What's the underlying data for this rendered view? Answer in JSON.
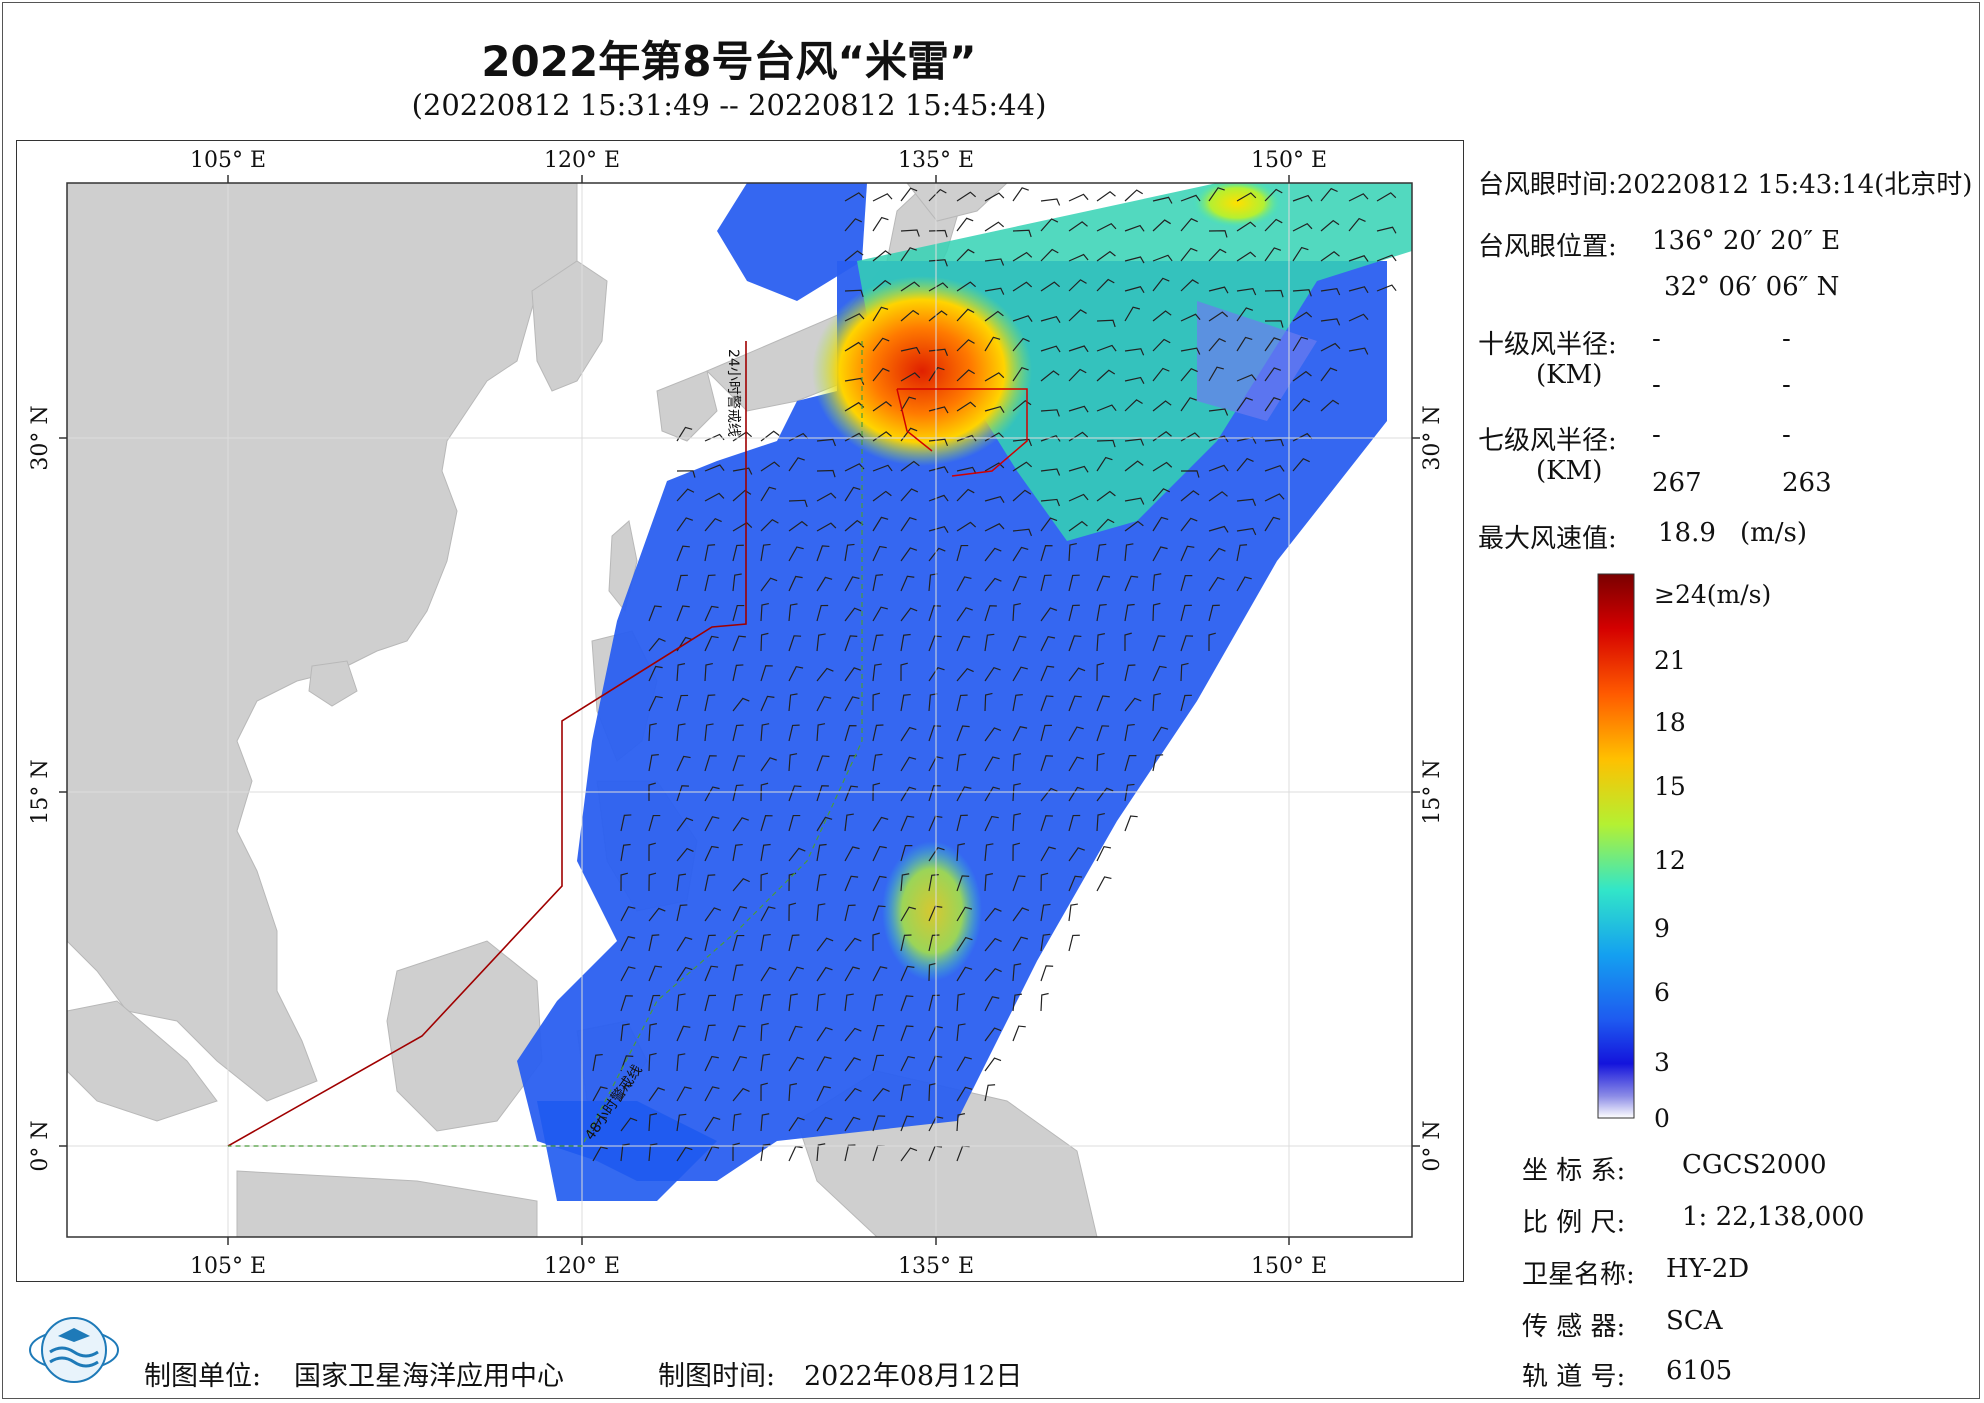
{
  "header": {
    "title": "2022年第8号台风“米雷”",
    "subtitle": "(20220812 15:31:49 -- 20220812 15:45:44)"
  },
  "map": {
    "lon_ticks_top": [
      "105° E",
      "120° E",
      "135° E",
      "150° E"
    ],
    "lon_ticks_bottom": [
      "105° E",
      "120° E",
      "135° E",
      "150° E"
    ],
    "lat_ticks": [
      "30° N",
      "15° N",
      "0° N"
    ],
    "warning_line_24h": "24小时警戒线",
    "warning_line_48h": "48小时警戒线",
    "colors": {
      "land": "#cfcfcf",
      "sea": "#ffffff",
      "grid": "#dcdcdc",
      "warning_24h": "#a00000",
      "warning_48h": "#4a9a3a"
    }
  },
  "info": {
    "eye_time_label": "台风眼时间:",
    "eye_time_value": "20220812 15:43:14(北京时)",
    "eye_position_label": "台风眼位置:",
    "eye_lon": "136° 20′ 20″ E",
    "eye_lat": "32° 06′ 06″ N",
    "r10_label": "十级风半径:",
    "r10_unit": "(KM)",
    "r10_values": [
      "-",
      "-",
      "-",
      "-"
    ],
    "r7_label": "七级风半径:",
    "r7_unit": "(KM)",
    "r7_values": [
      "-",
      "-",
      "267",
      "263"
    ],
    "max_wind_label": "最大风速值:",
    "max_wind_value": "18.9",
    "max_wind_unit": "(m/s)"
  },
  "colorbar": {
    "labels": [
      "≥24(m/s)",
      "21",
      "18",
      "15",
      "12",
      "9",
      "6",
      "3",
      "0"
    ],
    "colors": [
      "#7a0000",
      "#d40000",
      "#ff5a00",
      "#ffc000",
      "#b4f032",
      "#32e6c8",
      "#14a0f0",
      "#1e5af0",
      "#1414dc",
      "#8c8ce6",
      "#ffffff"
    ]
  },
  "meta": {
    "crs_label": "坐 标 系:",
    "crs_value": "CGCS2000",
    "scale_label": "比 例 尺:",
    "scale_value": "1: 22,138,000",
    "satellite_label": "卫星名称:",
    "satellite_value": "HY-2D",
    "sensor_label": "传 感 器:",
    "sensor_value": "SCA",
    "orbit_label": "轨 道 号:",
    "orbit_value": "6105"
  },
  "footer": {
    "unit_label": "制图单位:",
    "unit_value": "国家卫星海洋应用中心",
    "date_label": "制图时间:",
    "date_value": "2022年08月12日",
    "logo_icon": "nsoas-logo-icon"
  }
}
